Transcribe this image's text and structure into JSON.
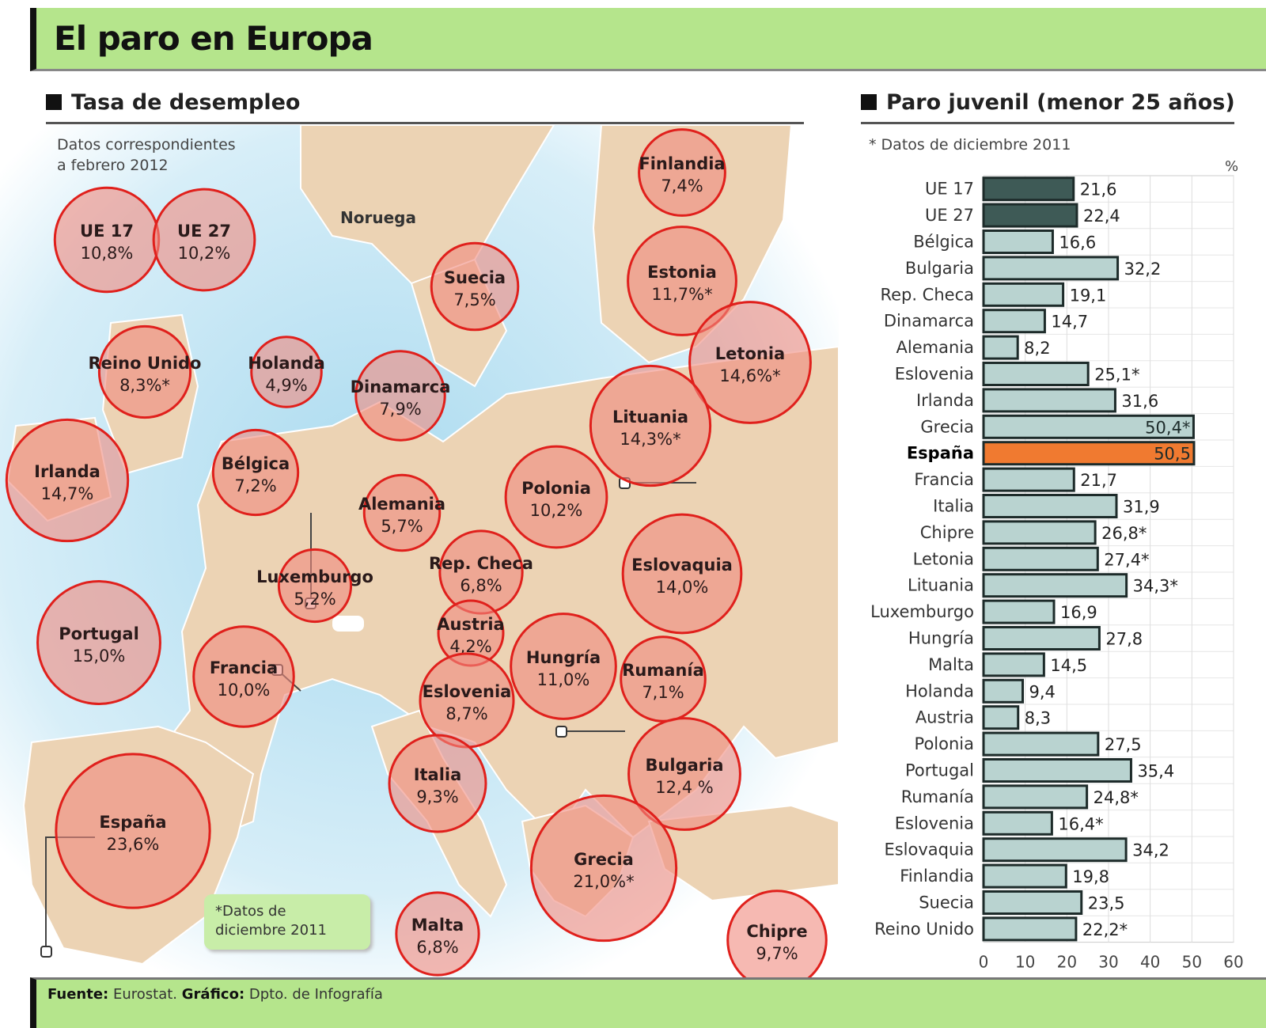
{
  "header": {
    "title": "El paro en Europa"
  },
  "map_section": {
    "title": "Tasa de desempleo",
    "subtitle_line1": "Datos correspondientes",
    "subtitle_line2": "a febrero 2012",
    "label_noruega": "Noruega",
    "note_line1": "*Datos de",
    "note_line2": "diciembre 2011"
  },
  "bar_section": {
    "title": "Paro juvenil (menor 25 años)",
    "subtitle": "* Datos de diciembre 2011"
  },
  "footer": {
    "source_label": "Fuente:",
    "source": "Eurostat.",
    "graphic_label": "Gráfico:",
    "graphic": "Dpto. de Infografía"
  },
  "colors": {
    "title_band": "#b5e58c",
    "bubble_fill": "#f08a7e",
    "bubble_stroke": "#e0201c",
    "bar_eu": "#3e5a56",
    "bar_country": "#b9d3d0",
    "bar_spain": "#f07a30",
    "sea": "#bfe3f2",
    "land": "#ecd3b4"
  },
  "chart_data": [
    {
      "type": "bubble-map",
      "title": "Tasa de desempleo",
      "unit": "%",
      "points": [
        {
          "name": "UE 17",
          "label": "10,8%",
          "value": 10.8
        },
        {
          "name": "UE 27",
          "label": "10,2%",
          "value": 10.2
        },
        {
          "name": "Finlandia",
          "label": "7,4%",
          "value": 7.4
        },
        {
          "name": "Suecia",
          "label": "7,5%",
          "value": 7.5
        },
        {
          "name": "Estonia",
          "label": "11,7%*",
          "value": 11.7
        },
        {
          "name": "Letonia",
          "label": "14,6%*",
          "value": 14.6
        },
        {
          "name": "Reino Unido",
          "label": "8,3%*",
          "value": 8.3
        },
        {
          "name": "Holanda",
          "label": "4,9%",
          "value": 4.9
        },
        {
          "name": "Dinamarca",
          "label": "7,9%",
          "value": 7.9
        },
        {
          "name": "Lituania",
          "label": "14,3%*",
          "value": 14.3
        },
        {
          "name": "Irlanda",
          "label": "14,7%",
          "value": 14.7
        },
        {
          "name": "Bélgica",
          "label": "7,2%",
          "value": 7.2
        },
        {
          "name": "Alemania",
          "label": "5,7%",
          "value": 5.7
        },
        {
          "name": "Polonia",
          "label": "10,2%",
          "value": 10.2
        },
        {
          "name": "Luxemburgo",
          "label": "5,2%",
          "value": 5.2
        },
        {
          "name": "Rep. Checa",
          "label": "6,8%",
          "value": 6.8
        },
        {
          "name": "Eslovaquia",
          "label": "14,0%",
          "value": 14.0
        },
        {
          "name": "Portugal",
          "label": "15,0%",
          "value": 15.0
        },
        {
          "name": "Austria",
          "label": "4,2%",
          "value": 4.2
        },
        {
          "name": "Francia",
          "label": "10,0%",
          "value": 10.0
        },
        {
          "name": "Hungría",
          "label": "11,0%",
          "value": 11.0
        },
        {
          "name": "Rumanía",
          "label": "7,1%",
          "value": 7.1
        },
        {
          "name": "Eslovenia",
          "label": "8,7%",
          "value": 8.7
        },
        {
          "name": "Italia",
          "label": "9,3%",
          "value": 9.3
        },
        {
          "name": "Bulgaria",
          "label": "12,4 %",
          "value": 12.4
        },
        {
          "name": "España",
          "label": "23,6%",
          "value": 23.6
        },
        {
          "name": "Grecia",
          "label": "21,0%*",
          "value": 21.0
        },
        {
          "name": "Malta",
          "label": "6,8%",
          "value": 6.8
        },
        {
          "name": "Chipre",
          "label": "9,7%",
          "value": 9.7
        }
      ]
    },
    {
      "type": "bar",
      "orientation": "horizontal",
      "title": "Paro juvenil (menor 25 años)",
      "unit_label": "%",
      "xlim": [
        0,
        60
      ],
      "xticks": [
        "0",
        "10",
        "20",
        "30",
        "40",
        "50",
        "60"
      ],
      "grid": true,
      "categories": [
        "UE 17",
        "UE 27",
        "Bélgica",
        "Bulgaria",
        "Rep. Checa",
        "Dinamarca",
        "Alemania",
        "Eslovenia",
        "Irlanda",
        "Grecia",
        "España",
        "Francia",
        "Italia",
        "Chipre",
        "Letonia",
        "Lituania",
        "Luxemburgo",
        "Hungría",
        "Malta",
        "Holanda",
        "Austria",
        "Polonia",
        "Portugal",
        "Rumanía",
        "Eslovenia",
        "Eslovaquia",
        "Finlandia",
        "Suecia",
        "Reino Unido"
      ],
      "values": [
        21.6,
        22.4,
        16.6,
        32.2,
        19.1,
        14.7,
        8.2,
        25.1,
        31.6,
        50.4,
        50.5,
        21.7,
        31.9,
        26.8,
        27.4,
        34.3,
        16.9,
        27.8,
        14.5,
        9.4,
        8.3,
        27.5,
        35.4,
        24.8,
        16.4,
        34.2,
        19.8,
        23.5,
        22.2
      ],
      "labels": [
        "21,6",
        "22,4",
        "16,6",
        "32,2",
        "19,1",
        "14,7",
        "8,2",
        "25,1*",
        "31,6",
        "50,4*",
        "50,5",
        "21,7",
        "31,9",
        "26,8*",
        "27,4*",
        "34,3*",
        "16,9",
        "27,8",
        "14,5",
        "9,4",
        "8,3",
        "27,5",
        "35,4",
        "24,8*",
        "16,4*",
        "34,2",
        "19,8",
        "23,5",
        "22,2*"
      ],
      "highlight": {
        "España": "spain",
        "UE 17": "eu",
        "UE 27": "eu"
      }
    }
  ]
}
